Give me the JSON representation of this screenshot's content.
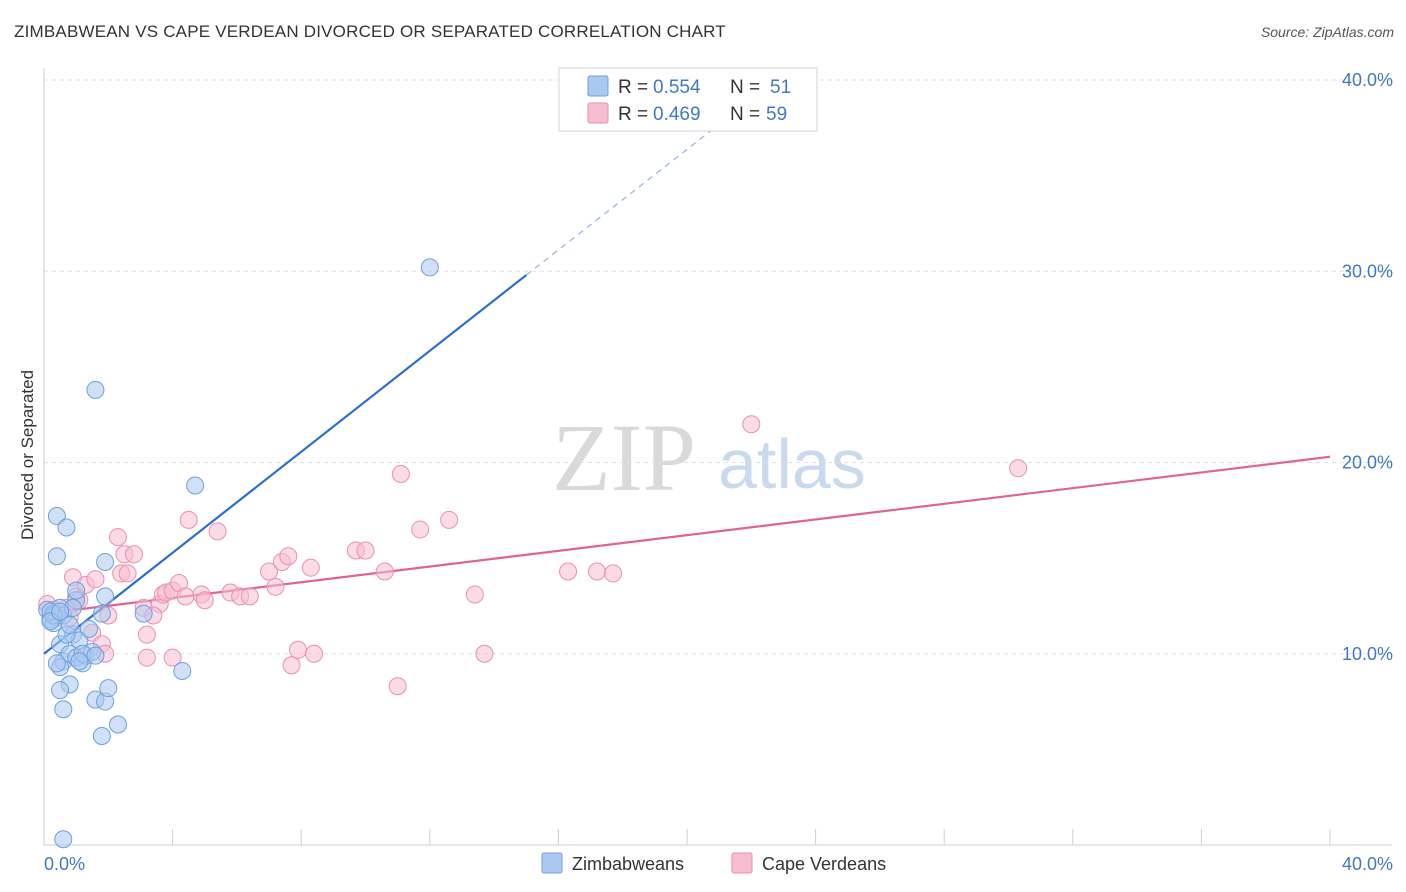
{
  "title": "ZIMBABWEAN VS CAPE VERDEAN DIVORCED OR SEPARATED CORRELATION CHART",
  "source": "Source: ZipAtlas.com",
  "watermark": {
    "part1": "ZIP",
    "part2": "atlas"
  },
  "colors": {
    "blue_fill": "#aac8f0",
    "blue_stroke": "#6f9fdb",
    "blue_line": "#2a6fd1",
    "pink_fill": "#f7bdd0",
    "pink_stroke": "#ea8fb0",
    "pink_line": "#e0648f",
    "tick_text": "#3f78c4",
    "grid": "#e0e0e0"
  },
  "legend": {
    "r_label": "R =",
    "n_label": "N =",
    "series": [
      {
        "name": "Zimbabweans",
        "r": "0.554",
        "n": "51"
      },
      {
        "name": "Cape Verdeans",
        "r": "0.469",
        "n": "59"
      }
    ]
  },
  "chart_data": {
    "type": "scatter",
    "title": "ZIMBABWEAN VS CAPE VERDEAN DIVORCED OR SEPARATED CORRELATION CHART",
    "xlabel": "",
    "ylabel": "Divorced or Separated",
    "xlim": [
      0,
      40
    ],
    "ylim": [
      0,
      40
    ],
    "x_tick_labels": [
      "0.0%",
      "40.0%"
    ],
    "y_ticks": [
      10,
      20,
      30,
      40
    ],
    "y_tick_labels": [
      "10.0%",
      "20.0%",
      "30.0%",
      "40.0%"
    ],
    "grid": true,
    "series": [
      {
        "name": "Zimbabweans",
        "points": [
          [
            0.1,
            12.3
          ],
          [
            0.2,
            11.8
          ],
          [
            0.3,
            12.1
          ],
          [
            0.4,
            11.9
          ],
          [
            0.5,
            12.4
          ],
          [
            0.3,
            11.6
          ],
          [
            0.6,
            12.0
          ],
          [
            0.4,
            17.2
          ],
          [
            0.4,
            15.1
          ],
          [
            0.7,
            16.6
          ],
          [
            0.5,
            10.5
          ],
          [
            0.6,
            9.6
          ],
          [
            0.5,
            9.3
          ],
          [
            0.8,
            10.0
          ],
          [
            0.9,
            11.0
          ],
          [
            1.0,
            9.8
          ],
          [
            1.1,
            10.7
          ],
          [
            0.8,
            8.4
          ],
          [
            0.5,
            8.1
          ],
          [
            0.6,
            7.1
          ],
          [
            1.2,
            9.5
          ],
          [
            1.3,
            9.9
          ],
          [
            1.5,
            10.1
          ],
          [
            1.2,
            10.0
          ],
          [
            1.4,
            11.3
          ],
          [
            1.8,
            12.1
          ],
          [
            1.9,
            13.0
          ],
          [
            1.9,
            14.8
          ],
          [
            1.0,
            12.8
          ],
          [
            1.6,
            7.6
          ],
          [
            1.9,
            7.5
          ],
          [
            2.0,
            8.2
          ],
          [
            2.3,
            6.3
          ],
          [
            1.8,
            5.7
          ],
          [
            1.6,
            23.8
          ],
          [
            4.7,
            18.8
          ],
          [
            4.3,
            9.1
          ],
          [
            3.1,
            12.1
          ],
          [
            12.0,
            30.2
          ],
          [
            0.6,
            0.3
          ],
          [
            0.3,
            12.0
          ],
          [
            0.2,
            12.2
          ],
          [
            0.7,
            11.0
          ],
          [
            1.1,
            9.6
          ],
          [
            1.6,
            9.9
          ],
          [
            0.9,
            12.4
          ],
          [
            0.4,
            9.5
          ],
          [
            1.0,
            13.3
          ],
          [
            0.2,
            11.7
          ],
          [
            0.5,
            12.2
          ],
          [
            0.8,
            11.5
          ]
        ]
      },
      {
        "name": "Cape Verdeans",
        "points": [
          [
            0.1,
            12.6
          ],
          [
            0.3,
            12.3
          ],
          [
            0.5,
            12.1
          ],
          [
            0.7,
            12.4
          ],
          [
            0.9,
            14.0
          ],
          [
            1.0,
            13.0
          ],
          [
            1.1,
            12.8
          ],
          [
            1.3,
            13.6
          ],
          [
            1.6,
            13.9
          ],
          [
            1.5,
            11.1
          ],
          [
            1.8,
            10.5
          ],
          [
            1.9,
            10.0
          ],
          [
            2.0,
            12.0
          ],
          [
            2.3,
            16.1
          ],
          [
            2.4,
            14.2
          ],
          [
            2.5,
            15.2
          ],
          [
            2.6,
            14.2
          ],
          [
            2.8,
            15.2
          ],
          [
            3.1,
            12.4
          ],
          [
            3.2,
            11.0
          ],
          [
            3.2,
            9.8
          ],
          [
            3.6,
            12.6
          ],
          [
            3.7,
            13.1
          ],
          [
            3.8,
            13.2
          ],
          [
            4.0,
            13.3
          ],
          [
            4.2,
            13.7
          ],
          [
            4.4,
            13.0
          ],
          [
            4.0,
            9.8
          ],
          [
            4.5,
            17.0
          ],
          [
            4.9,
            13.1
          ],
          [
            5.0,
            12.8
          ],
          [
            5.4,
            16.4
          ],
          [
            5.8,
            13.2
          ],
          [
            6.1,
            13.0
          ],
          [
            6.4,
            13.0
          ],
          [
            7.0,
            14.3
          ],
          [
            7.2,
            13.5
          ],
          [
            7.4,
            14.8
          ],
          [
            7.6,
            15.1
          ],
          [
            7.9,
            10.2
          ],
          [
            8.3,
            14.5
          ],
          [
            8.4,
            10.0
          ],
          [
            7.7,
            9.4
          ],
          [
            9.7,
            15.4
          ],
          [
            10.0,
            15.4
          ],
          [
            10.6,
            14.3
          ],
          [
            11.1,
            19.4
          ],
          [
            11.0,
            8.3
          ],
          [
            11.7,
            16.5
          ],
          [
            12.6,
            17.0
          ],
          [
            13.4,
            13.1
          ],
          [
            13.7,
            10.0
          ],
          [
            16.3,
            14.3
          ],
          [
            17.2,
            14.3
          ],
          [
            17.7,
            14.2
          ],
          [
            22.0,
            22.0
          ],
          [
            30.3,
            19.7
          ],
          [
            3.4,
            12.0
          ],
          [
            0.8,
            11.9
          ]
        ]
      }
    ],
    "trendlines": [
      {
        "name": "Zimbabweans",
        "x0": 0,
        "y0": 10.0,
        "x1": 15.0,
        "y1": 29.8,
        "dashed_to_x": 22.0,
        "dashed_to_y": 39.0
      },
      {
        "name": "Cape Verdeans",
        "x0": 0,
        "y0": 12.1,
        "x1": 40.0,
        "y1": 20.3
      }
    ]
  }
}
